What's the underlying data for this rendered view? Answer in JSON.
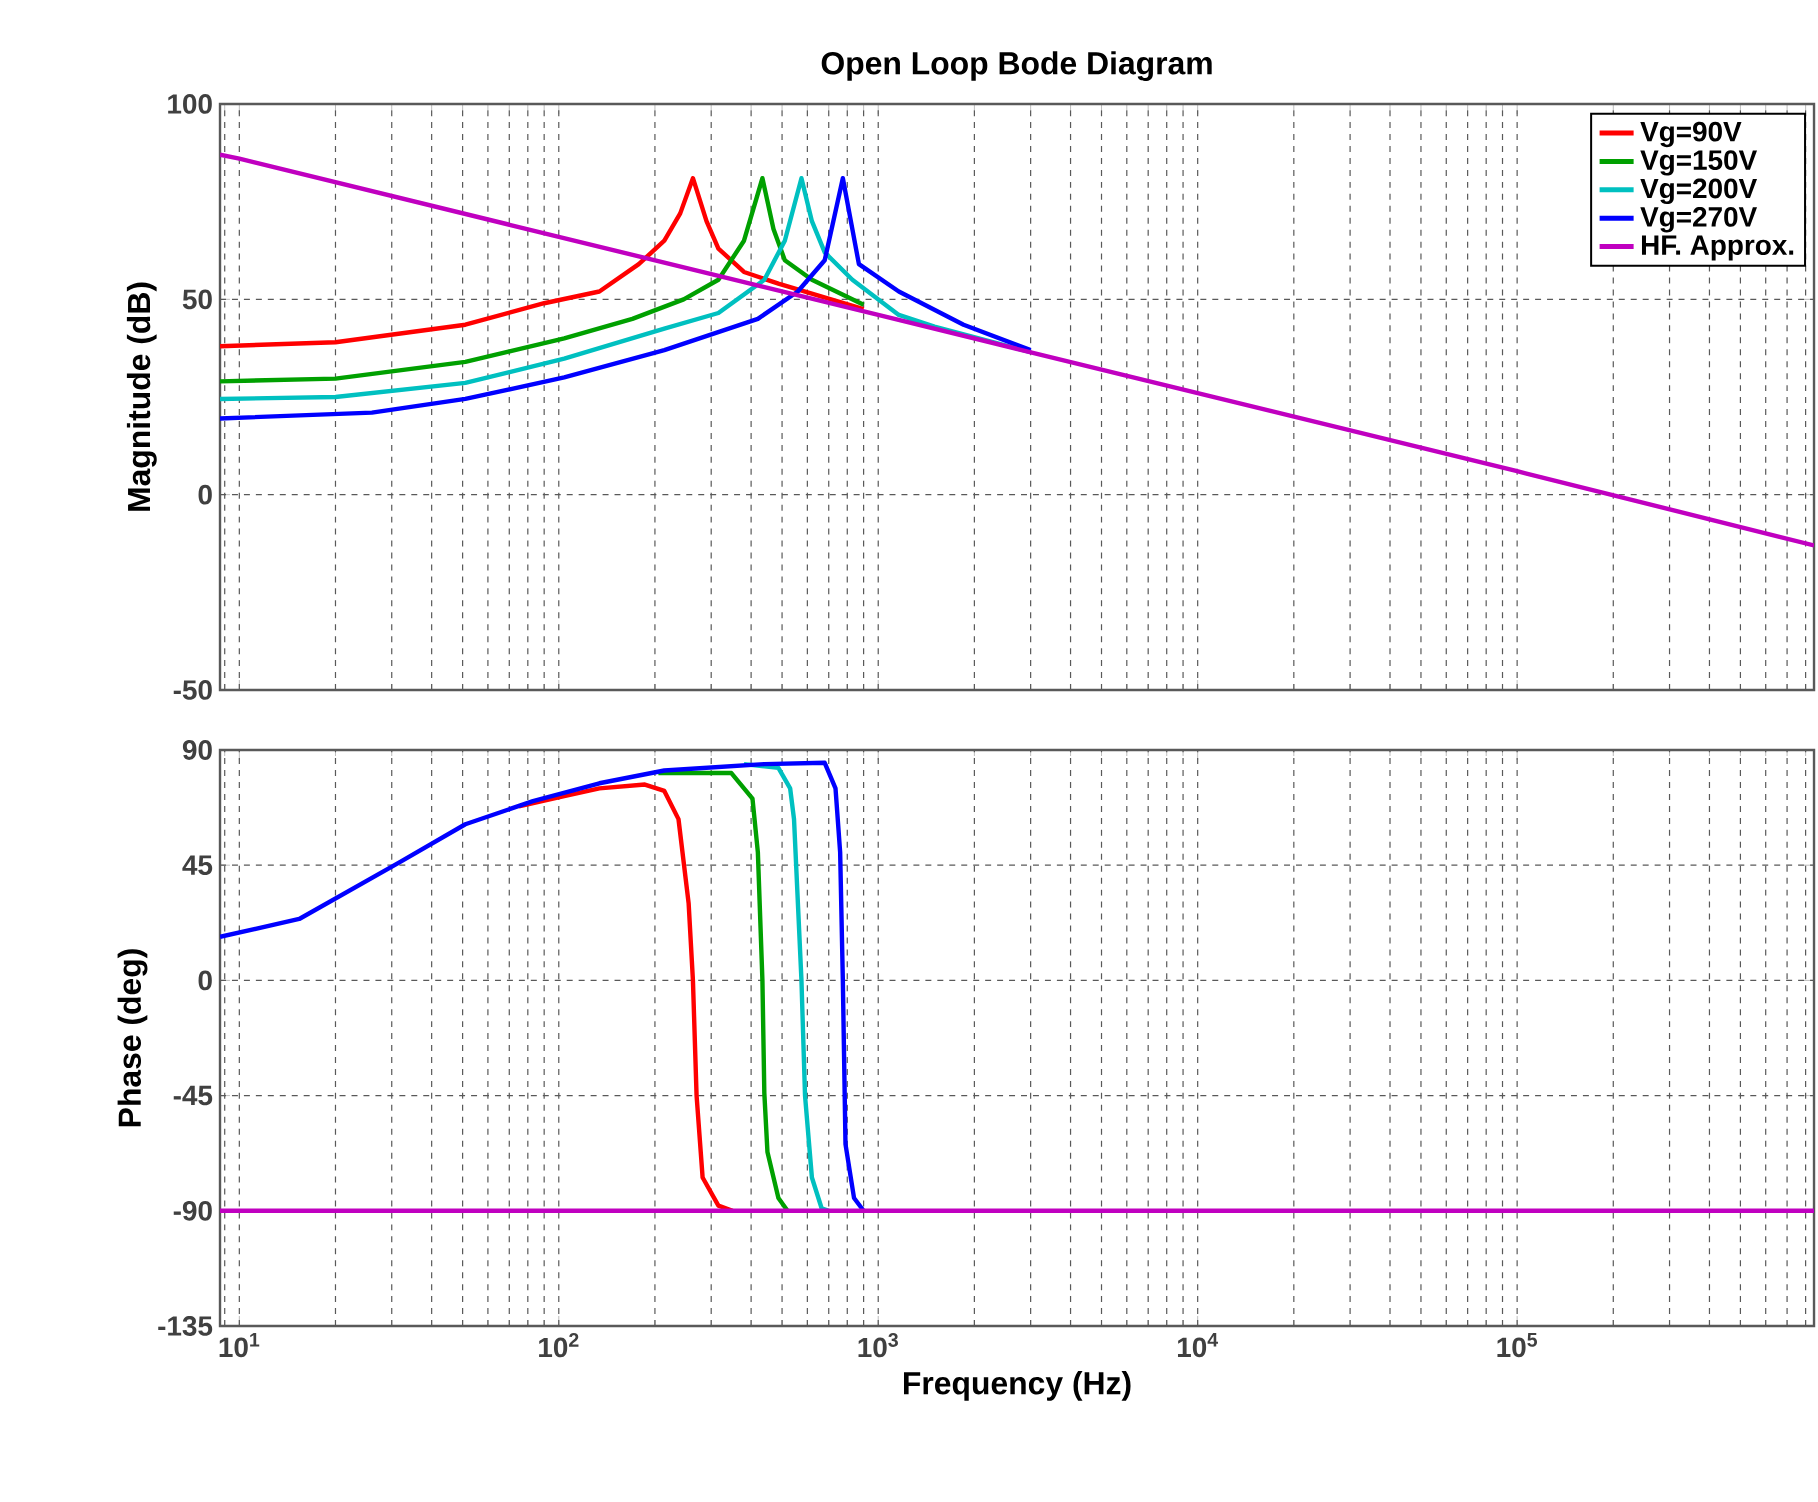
{
  "chart_data": [
    {
      "type": "line",
      "title": "Open Loop Bode Diagram",
      "ylabel": "Magnitude (dB)",
      "log": "x",
      "grid": true,
      "legend": "top right",
      "tick_labels": "y",
      "xlim": [
        8.7,
        850000
      ],
      "xticks": [
        {
          "value": 10,
          "label": null
        },
        {
          "value": 100,
          "label": null
        },
        {
          "value": 1000,
          "label": null
        },
        {
          "value": 10000,
          "label": null
        },
        {
          "value": 100000,
          "label": null
        }
      ],
      "ylim": [
        -50,
        100
      ],
      "yticks": [
        -50,
        0,
        50,
        100
      ],
      "series": [
        {
          "name": "Vg=90V",
          "color": "#ff0000",
          "x": [
            8.7,
            20,
            51,
            90,
            134,
            178,
            214,
            240,
            263,
            290,
            316,
            380,
            487,
            900
          ],
          "values": [
            38,
            39,
            43.5,
            49,
            52,
            59,
            65,
            72,
            81,
            70,
            63,
            57,
            54,
            47.5
          ]
        },
        {
          "name": "Vg=150V",
          "color": "#00a000",
          "x": [
            8.7,
            20,
            51,
            104,
            170,
            246,
            316,
            380,
            434,
            470,
            510,
            620,
            900
          ],
          "values": [
            29,
            29.7,
            34,
            40,
            45,
            50,
            55,
            65,
            81,
            68,
            60,
            55,
            48.6
          ]
        },
        {
          "name": "Vg=200V",
          "color": "#00c0c0",
          "x": [
            8.7,
            20,
            51,
            104,
            214,
            316,
            440,
            510,
            575,
            620,
            680,
            830,
            1160,
            1500,
            3000
          ],
          "values": [
            24.5,
            25,
            28.6,
            34.8,
            42.5,
            46.5,
            55,
            65,
            81,
            70,
            62,
            55,
            46,
            43,
            36.5
          ]
        },
        {
          "name": "Vg=270V",
          "color": "#0000ff",
          "x": [
            8.7,
            26,
            51,
            104,
            214,
            420,
            560,
            680,
            775,
            870,
            1160,
            1850,
            3000
          ],
          "values": [
            19.5,
            21,
            24.5,
            30,
            37,
            45,
            52,
            60,
            81,
            59,
            52,
            43.5,
            37
          ]
        },
        {
          "name": "HF. Approx.",
          "color": "#c000c0",
          "x": [
            8.7,
            10,
            100,
            1000,
            10000,
            100000,
            850000
          ],
          "values": [
            87,
            86,
            66,
            46,
            26,
            6,
            -13
          ]
        }
      ]
    },
    {
      "type": "line",
      "xlabel": "Frequency (Hz)",
      "ylabel": "Phase (deg)",
      "log": "x",
      "grid": true,
      "xlim": [
        8.7,
        850000
      ],
      "xticks": [
        {
          "value": 10,
          "label": "10$^{1}$"
        },
        {
          "value": 100,
          "label": "10$^{2}$"
        },
        {
          "value": 1000,
          "label": "10$^{3}$"
        },
        {
          "value": 10000,
          "label": "10$^{4}$"
        },
        {
          "value": 100000,
          "label": "10$^{5}$"
        }
      ],
      "ylim": [
        -135,
        90
      ],
      "yticks": [
        -135,
        -90,
        -45,
        0,
        45,
        90
      ],
      "series": [
        {
          "color": "#ff0000",
          "x": [
            75,
            104,
            134,
            186,
            214,
            237,
            255,
            263,
            270,
            282,
            316,
            350
          ],
          "values": [
            68,
            72,
            75,
            76.5,
            74,
            63,
            30,
            0,
            -45,
            -77,
            -88,
            -90
          ]
        },
        {
          "color": "#00a000",
          "x": [
            205,
            347,
            404,
            420,
            434,
            440,
            450,
            487,
            520
          ],
          "values": [
            81,
            81,
            71,
            50,
            0,
            -44,
            -67,
            -85,
            -90
          ]
        },
        {
          "color": "#00c0c0",
          "x": [
            380,
            487,
            530,
            545,
            575,
            590,
            620,
            665,
            700
          ],
          "values": [
            84.5,
            83,
            75,
            63,
            0,
            -45,
            -77,
            -89,
            -90
          ]
        },
        {
          "color": "#0000ff",
          "x": [
            8.7,
            15.4,
            31.6,
            51,
            83,
            134,
            214,
            440,
            680,
            735,
            760,
            775,
            790,
            840,
            900
          ],
          "values": [
            17,
            24,
            46,
            61,
            70,
            77,
            82,
            84.5,
            85,
            75,
            50,
            0,
            -64,
            -85,
            -90
          ]
        },
        {
          "color": "#c000c0",
          "x": [
            8.7,
            850000
          ],
          "values": [
            -90,
            -90
          ]
        }
      ]
    }
  ]
}
